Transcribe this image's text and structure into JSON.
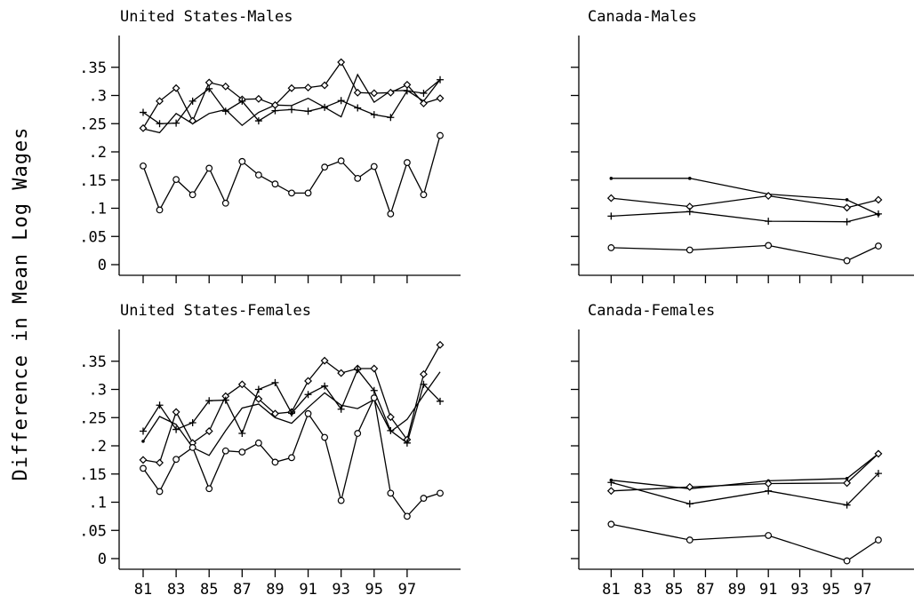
{
  "figure": {
    "ylabel": "Difference in Mean Log Wages",
    "ylim": [
      0,
      0.4
    ],
    "y_ticks": [
      0,
      0.05,
      0.1,
      0.15,
      0.2,
      0.25,
      0.3,
      0.35
    ],
    "y_tick_labels": [
      "0",
      ".05",
      ".1",
      ".15",
      ".2",
      ".25",
      ".3",
      ".35"
    ],
    "x_tick_labels": [
      "81",
      "83",
      "85",
      "87",
      "89",
      "91",
      "93",
      "95",
      "97"
    ],
    "x_tick_values": [
      81,
      83,
      85,
      87,
      89,
      91,
      93,
      95,
      97
    ],
    "marker_types": [
      "dot",
      "diamond",
      "plus",
      "circle",
      "none"
    ]
  },
  "chart_data": [
    {
      "type": "line",
      "title": "United States-Males",
      "xlim": [
        80.3,
        99.7
      ],
      "series": [
        {
          "marker": "dot",
          "x": [
            81
          ],
          "y": [
            0.242
          ]
        },
        {
          "marker": "none",
          "x": [
            81,
            82,
            83,
            84,
            85,
            86,
            87,
            88,
            89,
            90,
            91,
            92,
            93,
            94,
            95,
            96,
            97,
            98,
            99
          ],
          "y": [
            0.241,
            0.234,
            0.268,
            0.25,
            0.268,
            0.275,
            0.247,
            0.27,
            0.283,
            0.282,
            0.295,
            0.279,
            0.262,
            0.337,
            0.288,
            0.308,
            0.309,
            0.29,
            0.328
          ]
        },
        {
          "marker": "diamond",
          "x": [
            81,
            82,
            83,
            84,
            85,
            86,
            87,
            88,
            89,
            90,
            91,
            92,
            93,
            94,
            95,
            96,
            97,
            98,
            99
          ],
          "y": [
            0.242,
            0.29,
            0.313,
            0.255,
            0.323,
            0.316,
            0.293,
            0.294,
            0.283,
            0.313,
            0.314,
            0.318,
            0.359,
            0.305,
            0.304,
            0.305,
            0.319,
            0.286,
            0.295
          ]
        },
        {
          "marker": "plus",
          "x": [
            81,
            82,
            83,
            84,
            85,
            86,
            87,
            88,
            89,
            90,
            91,
            92,
            93,
            94,
            95,
            96,
            97,
            98,
            99
          ],
          "y": [
            0.27,
            0.25,
            0.251,
            0.29,
            0.312,
            0.272,
            0.29,
            0.255,
            0.273,
            0.275,
            0.272,
            0.279,
            0.291,
            0.278,
            0.266,
            0.261,
            0.308,
            0.304,
            0.328
          ]
        },
        {
          "marker": "circle",
          "x": [
            81,
            82,
            83,
            84,
            85,
            86,
            87,
            88,
            89,
            90,
            91,
            92,
            93,
            94,
            95,
            96,
            97,
            98,
            99
          ],
          "y": [
            0.175,
            0.097,
            0.151,
            0.124,
            0.171,
            0.109,
            0.183,
            0.159,
            0.143,
            0.127,
            0.127,
            0.173,
            0.184,
            0.153,
            0.174,
            0.09,
            0.181,
            0.124,
            0.229
          ]
        }
      ]
    },
    {
      "type": "line",
      "title": "Canada-Males",
      "xlim": [
        80.3,
        99.7
      ],
      "series": [
        {
          "marker": "dot",
          "x": [
            81,
            86,
            91,
            96,
            98
          ],
          "y": [
            0.153,
            0.153,
            0.125,
            0.115,
            0.089
          ]
        },
        {
          "marker": "diamond",
          "x": [
            81,
            86,
            91,
            96,
            98
          ],
          "y": [
            0.118,
            0.103,
            0.122,
            0.101,
            0.115
          ]
        },
        {
          "marker": "plus",
          "x": [
            81,
            86,
            91,
            96,
            98
          ],
          "y": [
            0.086,
            0.094,
            0.077,
            0.076,
            0.09
          ]
        },
        {
          "marker": "circle",
          "x": [
            81,
            86,
            91,
            96,
            98
          ],
          "y": [
            0.03,
            0.026,
            0.034,
            0.007,
            0.033
          ]
        }
      ]
    },
    {
      "type": "line",
      "title": "United States-Females",
      "xlim": [
        80.3,
        99.7
      ],
      "series": [
        {
          "marker": "dot",
          "x": [
            81
          ],
          "y": [
            0.208
          ]
        },
        {
          "marker": "none",
          "x": [
            81,
            82,
            83,
            84,
            85,
            86,
            87,
            88,
            89,
            90,
            91,
            92,
            93,
            94,
            95,
            96,
            97,
            98,
            99
          ],
          "y": [
            0.208,
            0.252,
            0.238,
            0.197,
            0.183,
            0.227,
            0.267,
            0.274,
            0.25,
            0.24,
            0.268,
            0.294,
            0.272,
            0.266,
            0.282,
            0.225,
            0.247,
            0.29,
            0.331
          ]
        },
        {
          "marker": "diamond",
          "x": [
            81,
            82,
            83,
            84,
            85,
            86,
            87,
            88,
            89,
            90,
            91,
            92,
            93,
            94,
            95,
            96,
            97,
            98,
            99
          ],
          "y": [
            0.175,
            0.17,
            0.26,
            0.205,
            0.226,
            0.288,
            0.309,
            0.283,
            0.257,
            0.26,
            0.315,
            0.351,
            0.329,
            0.337,
            0.337,
            0.251,
            0.211,
            0.327,
            0.379
          ]
        },
        {
          "marker": "plus",
          "x": [
            81,
            82,
            83,
            84,
            85,
            86,
            87,
            88,
            89,
            90,
            91,
            92,
            93,
            94,
            95,
            96,
            97,
            98,
            99
          ],
          "y": [
            0.226,
            0.272,
            0.229,
            0.241,
            0.28,
            0.281,
            0.222,
            0.3,
            0.312,
            0.258,
            0.291,
            0.306,
            0.265,
            0.335,
            0.298,
            0.227,
            0.205,
            0.309,
            0.279
          ]
        },
        {
          "marker": "circle",
          "x": [
            81,
            82,
            83,
            84,
            85,
            86,
            87,
            88,
            89,
            90,
            91,
            92,
            93,
            94,
            95,
            96,
            97,
            98,
            99
          ],
          "y": [
            0.16,
            0.119,
            0.176,
            0.197,
            0.124,
            0.191,
            0.189,
            0.205,
            0.171,
            0.179,
            0.257,
            0.215,
            0.103,
            0.222,
            0.285,
            0.116,
            0.075,
            0.107,
            0.116
          ]
        }
      ]
    },
    {
      "type": "line",
      "title": "Canada-Females",
      "xlim": [
        80.3,
        99.7
      ],
      "series": [
        {
          "marker": "dot",
          "x": [
            81,
            86,
            91,
            96,
            98
          ],
          "y": [
            0.139,
            0.124,
            0.138,
            0.142,
            0.186
          ]
        },
        {
          "marker": "diamond",
          "x": [
            81,
            86,
            91,
            96,
            98
          ],
          "y": [
            0.12,
            0.127,
            0.133,
            0.134,
            0.186
          ]
        },
        {
          "marker": "plus",
          "x": [
            81,
            86,
            91,
            96,
            98
          ],
          "y": [
            0.135,
            0.097,
            0.12,
            0.095,
            0.151
          ]
        },
        {
          "marker": "circle",
          "x": [
            81,
            86,
            91,
            96,
            98
          ],
          "y": [
            0.061,
            0.033,
            0.041,
            -0.004,
            0.033
          ]
        }
      ]
    }
  ]
}
